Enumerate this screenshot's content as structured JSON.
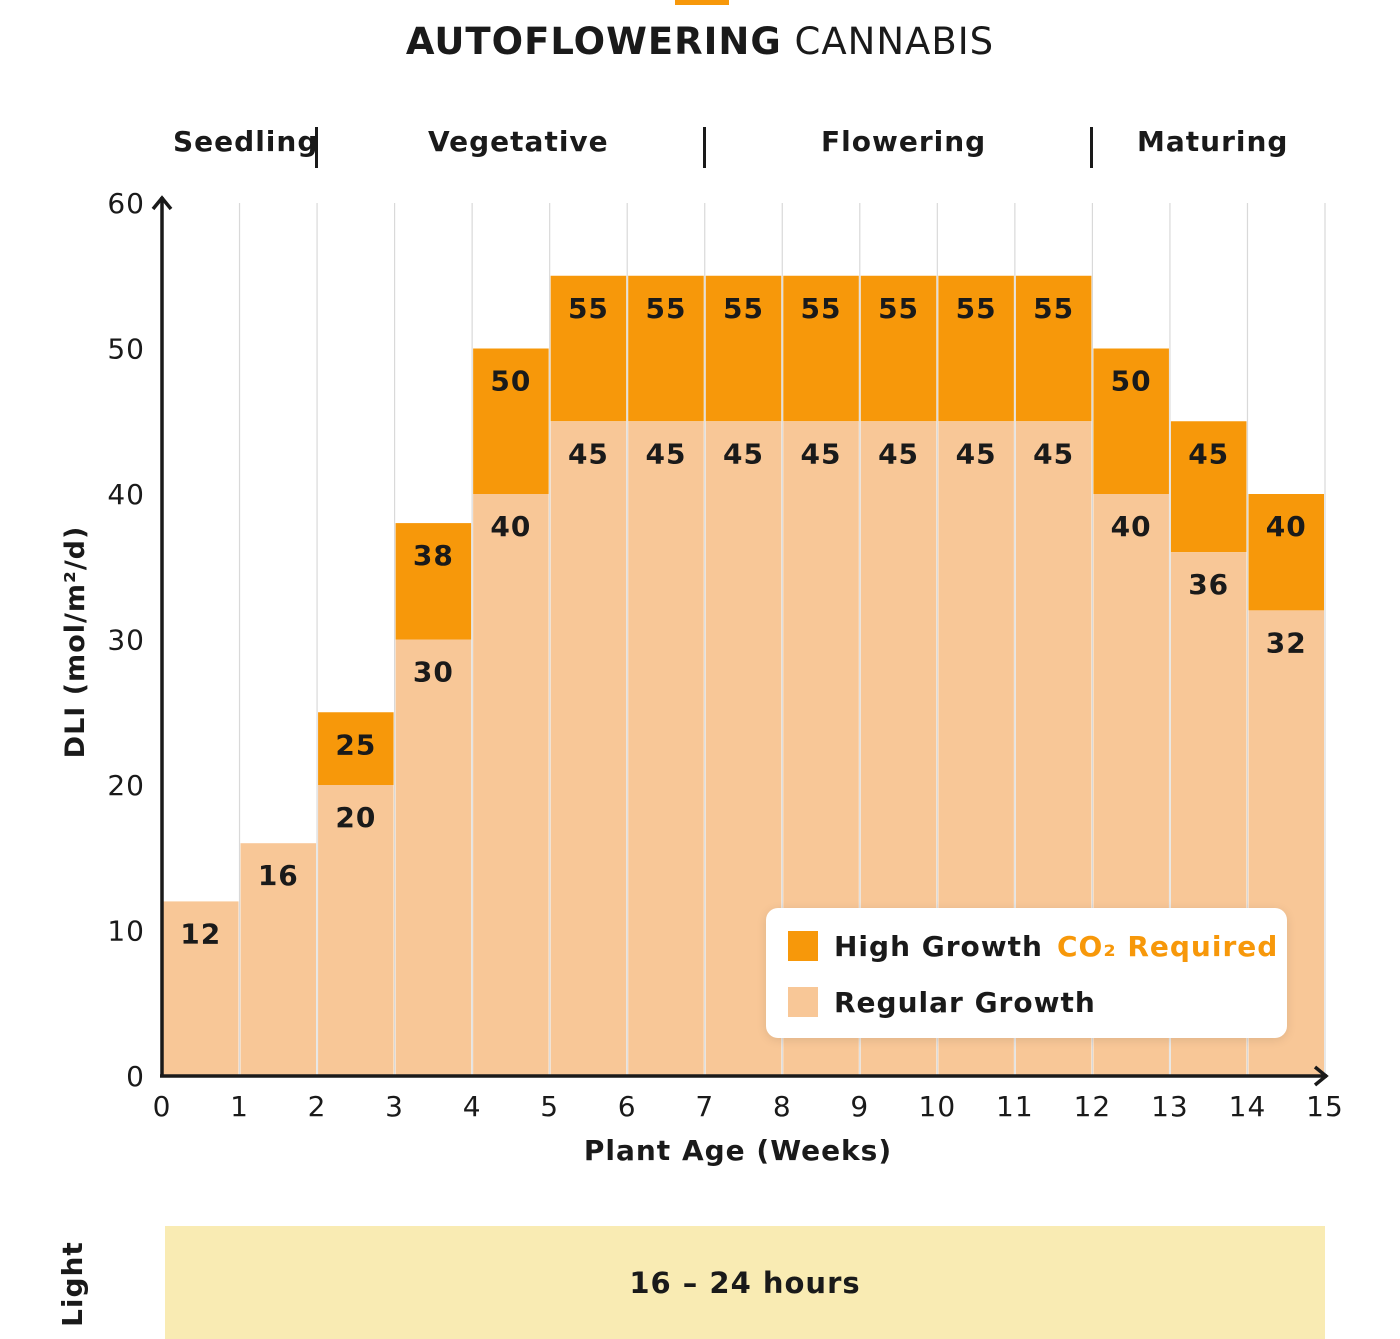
{
  "title": {
    "bold": "AUTOFLOWERING",
    "light": "CANNABIS"
  },
  "phases": [
    "Seedling",
    "Vegetative",
    "Flowering",
    "Maturing"
  ],
  "legend": {
    "high": "High Growth",
    "high_note": "CO₂ Required",
    "regular": "Regular Growth"
  },
  "light": {
    "label": "Light",
    "value": "16 – 24 hours"
  },
  "colors": {
    "high": "#f7980a",
    "regular": "#f8c797",
    "axis": "#1a1a1a",
    "grid": "#d9d9d9",
    "light_band": "#f9ebb3"
  },
  "chart_data": {
    "type": "bar",
    "title": "AUTOFLOWERING CANNABIS",
    "xlabel": "Plant Age (Weeks)",
    "ylabel": "DLI (mol/m²/d)",
    "xlim": [
      0,
      15
    ],
    "ylim": [
      0,
      60
    ],
    "x_ticks": [
      0,
      1,
      2,
      3,
      4,
      5,
      6,
      7,
      8,
      9,
      10,
      11,
      12,
      13,
      14,
      15
    ],
    "y_ticks": [
      0,
      10,
      20,
      30,
      40,
      50,
      60
    ],
    "grid": "vertical",
    "legend_position": "bottom-right",
    "categories": [
      "0-1",
      "1-2",
      "2-3",
      "3-4",
      "4-5",
      "5-6",
      "6-7",
      "7-8",
      "8-9",
      "9-10",
      "10-11",
      "11-12",
      "12-13",
      "13-14",
      "14-15"
    ],
    "series": [
      {
        "name": "Regular Growth",
        "values": [
          12,
          16,
          20,
          30,
          40,
          45,
          45,
          45,
          45,
          45,
          45,
          45,
          40,
          36,
          32
        ]
      },
      {
        "name": "High Growth",
        "values": [
          null,
          null,
          25,
          38,
          50,
          55,
          55,
          55,
          55,
          55,
          55,
          55,
          50,
          45,
          40
        ]
      }
    ]
  }
}
